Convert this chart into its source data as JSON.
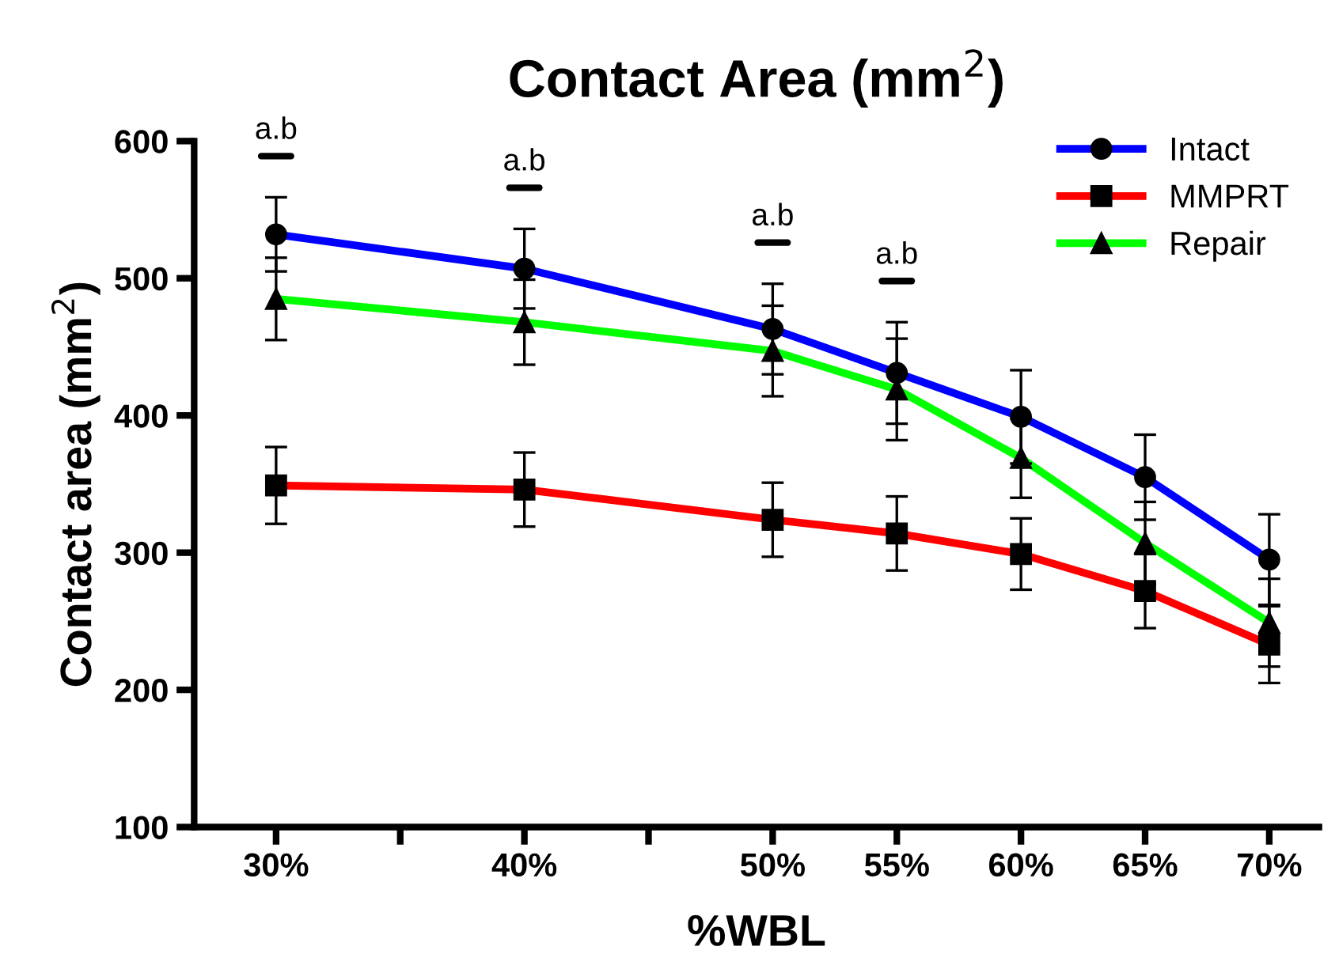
{
  "chart_data": {
    "type": "line",
    "title": "Contact Area (mm$^{2}$)",
    "xlabel": "%WBL",
    "ylabel": "Contact area (mm$^{2}$)",
    "x": [
      30,
      40,
      50,
      55,
      60,
      65,
      70
    ],
    "series": [
      {
        "name": "Intact",
        "color": "#0000ff",
        "marker": "circle",
        "values": [
          532,
          507,
          463,
          431,
          399,
          355,
          295
        ],
        "errors": [
          27,
          29,
          33,
          37,
          34,
          31,
          33
        ]
      },
      {
        "name": "MMPRT",
        "color": "#ff0000",
        "marker": "square",
        "values": [
          349,
          346,
          324,
          314,
          299,
          272,
          233
        ],
        "errors": [
          28,
          27,
          27,
          27,
          26,
          27,
          28
        ]
      },
      {
        "name": "Repair",
        "color": "#00ff00",
        "marker": "triangle",
        "values": [
          485,
          468,
          447,
          419,
          369,
          307,
          249
        ],
        "errors": [
          30,
          31,
          33,
          37,
          29,
          30,
          32
        ]
      }
    ],
    "xlim": [
      26.7,
      72
    ],
    "ylim": [
      100,
      600
    ],
    "xticks": [
      {
        "value": 30,
        "label": "30%"
      },
      {
        "value": 35,
        "label": null
      },
      {
        "value": 40,
        "label": "40%"
      },
      {
        "value": 45,
        "label": null
      },
      {
        "value": 50,
        "label": "50%"
      },
      {
        "value": 55,
        "label": "55%"
      },
      {
        "value": 60,
        "label": "60%"
      },
      {
        "value": 65,
        "label": "65%"
      },
      {
        "value": 70,
        "label": "70%"
      }
    ],
    "yticks": [
      100,
      200,
      300,
      400,
      500,
      600
    ],
    "annotations": [
      "a.b",
      "a.b",
      "a.b",
      "a.b"
    ],
    "grid": false,
    "legend": "top right",
    "line_style": "solid"
  }
}
